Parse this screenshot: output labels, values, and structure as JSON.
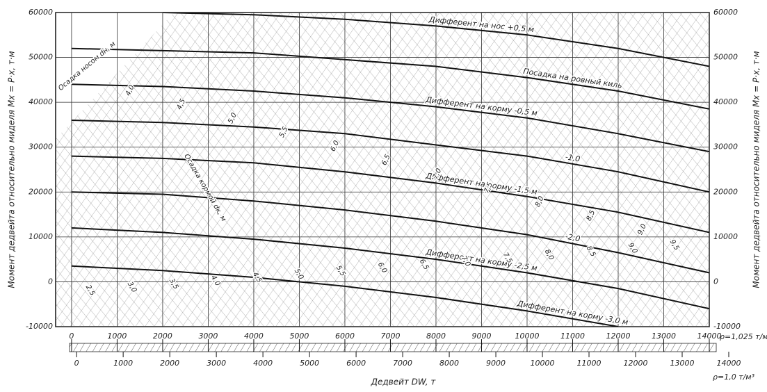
{
  "chart_data": {
    "type": "line",
    "xlabel": "Дедвейт DW, т",
    "ylabel": "Момент дедвейта относительно миделя Mx = P·x, т·м",
    "ylabel_right": "Момент дедвейта относительно миделя Mx = P·x, т·м",
    "density_top": "ρ=1,025 т/м³",
    "density_bottom": "ρ=1,0 т/м³",
    "xlim": [
      -350,
      14000
    ],
    "ylim": [
      -10000,
      60000
    ],
    "xticks": [
      0,
      1000,
      2000,
      3000,
      4000,
      5000,
      6000,
      7000,
      8000,
      9000,
      10000,
      11000,
      12000,
      13000,
      14000
    ],
    "yticks": [
      -10000,
      0,
      10000,
      20000,
      30000,
      40000,
      50000,
      60000
    ],
    "x2lim": [
      -450,
      14000
    ],
    "x2ticks": [
      0,
      1000,
      2000,
      3000,
      4000,
      5000,
      6000,
      7000,
      8000,
      9000,
      10000,
      11000,
      12000,
      13000,
      14000
    ],
    "grid": true,
    "x": [
      0,
      2000,
      4000,
      6000,
      8000,
      10000,
      12000,
      14000
    ],
    "series": [
      {
        "name": "Дифферент на нос +0,5 м",
        "color": "#111",
        "values": [
          null,
          60000,
          59500,
          58500,
          57000,
          55000,
          52000,
          48000
        ]
      },
      {
        "name": "Посадка на ровный киль",
        "color": "#111",
        "values": [
          52000,
          51500,
          51000,
          49500,
          48000,
          45500,
          42500,
          38500
        ]
      },
      {
        "name": "Дифферент на корму -0,5 м",
        "color": "#111",
        "values": [
          44000,
          43500,
          42500,
          41000,
          39000,
          36500,
          33000,
          29000
        ]
      },
      {
        "name": "-1,0",
        "color": "#111",
        "values": [
          36000,
          35500,
          34500,
          33000,
          30500,
          28000,
          24500,
          20000
        ]
      },
      {
        "name": "Дифферент на корму -1,5 м",
        "color": "#111",
        "values": [
          28000,
          27500,
          26500,
          24500,
          22000,
          19000,
          15500,
          11000
        ]
      },
      {
        "name": "-2,0",
        "color": "#111",
        "values": [
          20000,
          19500,
          18000,
          16000,
          13500,
          10500,
          6500,
          2000
        ]
      },
      {
        "name": "Дифферент на корму -2,5 м",
        "color": "#111",
        "values": [
          12000,
          11000,
          9500,
          7500,
          5000,
          2000,
          -1500,
          -6000
        ]
      },
      {
        "name": "Дифферент на корму -3,0 м",
        "color": "#111",
        "values": [
          3500,
          2500,
          1000,
          -1000,
          -3500,
          -6500,
          -10000,
          null
        ]
      }
    ],
    "draft_forward_title": "Осадка носом dн, м",
    "draft_forward_labels": [
      "4,0",
      "4,5",
      "5,0",
      "5,5",
      "6,0",
      "6,5",
      "7,0",
      "7,5",
      "8,0",
      "8,5",
      "9,0"
    ],
    "draft_aft_title": "Осадка кормой dк, м",
    "draft_aft_labels": [
      "2,5",
      "3,0",
      "3,5",
      "4,0",
      "4,5",
      "5,0",
      "5,5",
      "6,0",
      "6,5",
      "7,0",
      "7,5",
      "8,0",
      "8,5",
      "9,0",
      "9,5"
    ]
  }
}
